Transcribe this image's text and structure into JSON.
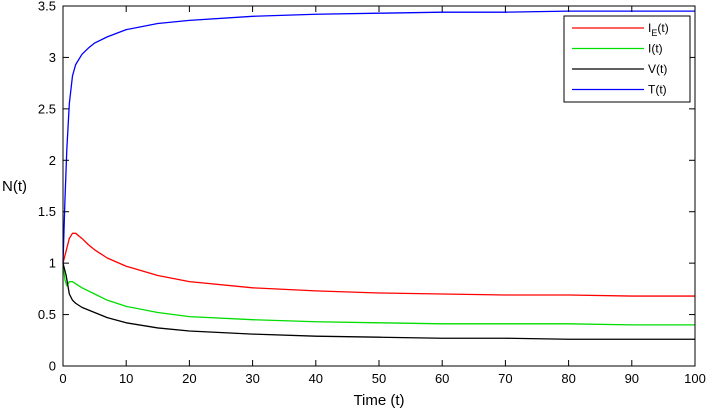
{
  "chart_data": {
    "type": "line",
    "title": "",
    "xlabel": "Time (t)",
    "ylabel": "N(t)",
    "xlim": [
      0,
      100
    ],
    "ylim": [
      0,
      3.5
    ],
    "xticks": [
      "0",
      "10",
      "20",
      "30",
      "40",
      "50",
      "60",
      "70",
      "80",
      "90",
      "100"
    ],
    "yticks": [
      "0",
      "0.5",
      "1",
      "1.5",
      "2",
      "2.5",
      "3",
      "3.5"
    ],
    "grid": false,
    "legend_position": "top-right",
    "series": [
      {
        "name": "I_E(t)",
        "label_main": "I",
        "label_sub": "E",
        "label_tail": "(t)",
        "color": "#ff0000",
        "x": [
          0,
          0.5,
          1,
          1.5,
          2,
          3,
          4,
          5,
          7,
          10,
          15,
          20,
          30,
          40,
          50,
          60,
          70,
          80,
          90,
          100
        ],
        "y": [
          1.0,
          1.12,
          1.24,
          1.29,
          1.29,
          1.24,
          1.18,
          1.13,
          1.05,
          0.97,
          0.88,
          0.82,
          0.76,
          0.73,
          0.71,
          0.7,
          0.69,
          0.69,
          0.68,
          0.68
        ]
      },
      {
        "name": "I(t)",
        "label_main": "I(t)",
        "label_sub": "",
        "label_tail": "",
        "color": "#00dd00",
        "x": [
          0,
          0.3,
          0.6,
          1,
          1.5,
          2,
          3,
          5,
          7,
          10,
          15,
          20,
          30,
          40,
          50,
          60,
          70,
          80,
          90,
          100
        ],
        "y": [
          1.0,
          0.84,
          0.78,
          0.82,
          0.82,
          0.8,
          0.76,
          0.7,
          0.64,
          0.58,
          0.52,
          0.48,
          0.45,
          0.43,
          0.42,
          0.41,
          0.41,
          0.41,
          0.4,
          0.4
        ]
      },
      {
        "name": "V(t)",
        "label_main": "V(t)",
        "label_sub": "",
        "label_tail": "",
        "color": "#000000",
        "x": [
          0,
          0.5,
          1,
          1.5,
          2,
          3,
          5,
          7,
          10,
          15,
          20,
          30,
          40,
          50,
          60,
          70,
          80,
          90,
          100
        ],
        "y": [
          1.0,
          0.88,
          0.7,
          0.64,
          0.61,
          0.57,
          0.52,
          0.47,
          0.42,
          0.37,
          0.34,
          0.31,
          0.29,
          0.28,
          0.27,
          0.27,
          0.26,
          0.26,
          0.26
        ]
      },
      {
        "name": "T(t)",
        "label_main": "T(t)",
        "label_sub": "",
        "label_tail": "",
        "color": "#0000ff",
        "x": [
          0,
          0.3,
          0.6,
          1,
          1.5,
          2,
          3,
          4,
          5,
          7,
          10,
          15,
          20,
          30,
          40,
          50,
          60,
          70,
          80,
          90,
          100
        ],
        "y": [
          1.0,
          1.6,
          2.1,
          2.55,
          2.82,
          2.93,
          3.03,
          3.09,
          3.14,
          3.2,
          3.27,
          3.33,
          3.36,
          3.4,
          3.42,
          3.43,
          3.44,
          3.44,
          3.45,
          3.45,
          3.45
        ]
      }
    ]
  }
}
